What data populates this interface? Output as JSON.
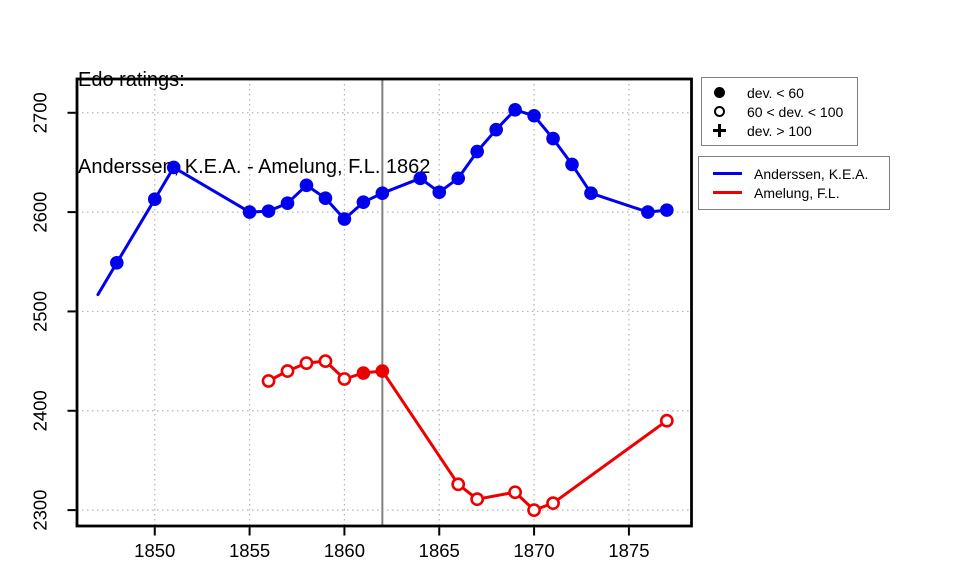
{
  "title": {
    "line1": "Edo ratings:",
    "line2": "Anderssen, K.E.A. - Amelung, F.L. 1862"
  },
  "colors": {
    "anderssen": "#0000ee",
    "amelung": "#ee0000",
    "event_line": "#808080",
    "grid": "#b3b3b3",
    "axis": "#000000",
    "background": "#ffffff"
  },
  "chart_data": {
    "type": "line",
    "title": "Edo ratings: Anderssen, K.E.A. - Amelung, F.L. 1862",
    "xlabel": "",
    "ylabel": "",
    "xlim": [
      1845.9,
      1878.3
    ],
    "ylim": [
      2284,
      2734
    ],
    "x_ticks": [
      "1850",
      "1855",
      "1860",
      "1865",
      "1870",
      "1875"
    ],
    "x_tick_values": [
      1850,
      1855,
      1860,
      1865,
      1870,
      1875
    ],
    "y_ticks": [
      "2300",
      "2400",
      "2500",
      "2600",
      "2700"
    ],
    "y_tick_values": [
      2300,
      2400,
      2500,
      2600,
      2700
    ],
    "grid": true,
    "grid_style": "dotted",
    "event_year": 1862,
    "legend_position": "outside-right",
    "marker_legend": [
      {
        "marker": "filled",
        "label": "dev. < 60"
      },
      {
        "marker": "open",
        "label": "60 < dev. < 100"
      },
      {
        "marker": "plus",
        "label": "dev. > 100"
      }
    ],
    "series": [
      {
        "name": "Anderssen, K.E.A.",
        "color": "#0000ee",
        "points": [
          {
            "year": 1847,
            "rating": 2517,
            "marker": "none"
          },
          {
            "year": 1848,
            "rating": 2549,
            "marker": "filled"
          },
          {
            "year": 1850,
            "rating": 2613,
            "marker": "filled"
          },
          {
            "year": 1851,
            "rating": 2645,
            "marker": "filled"
          },
          {
            "year": 1855,
            "rating": 2600,
            "marker": "filled"
          },
          {
            "year": 1856,
            "rating": 2601,
            "marker": "filled"
          },
          {
            "year": 1857,
            "rating": 2609,
            "marker": "filled"
          },
          {
            "year": 1858,
            "rating": 2627,
            "marker": "filled"
          },
          {
            "year": 1859,
            "rating": 2614,
            "marker": "filled"
          },
          {
            "year": 1860,
            "rating": 2593,
            "marker": "filled"
          },
          {
            "year": 1861,
            "rating": 2610,
            "marker": "filled"
          },
          {
            "year": 1862,
            "rating": 2619,
            "marker": "filled"
          },
          {
            "year": 1864,
            "rating": 2634,
            "marker": "filled"
          },
          {
            "year": 1865,
            "rating": 2620,
            "marker": "filled"
          },
          {
            "year": 1866,
            "rating": 2634,
            "marker": "filled"
          },
          {
            "year": 1867,
            "rating": 2661,
            "marker": "filled"
          },
          {
            "year": 1868,
            "rating": 2683,
            "marker": "filled"
          },
          {
            "year": 1869,
            "rating": 2703,
            "marker": "filled"
          },
          {
            "year": 1870,
            "rating": 2697,
            "marker": "filled"
          },
          {
            "year": 1871,
            "rating": 2674,
            "marker": "filled"
          },
          {
            "year": 1872,
            "rating": 2648,
            "marker": "filled"
          },
          {
            "year": 1873,
            "rating": 2619,
            "marker": "filled"
          },
          {
            "year": 1876,
            "rating": 2600,
            "marker": "filled"
          },
          {
            "year": 1877,
            "rating": 2602,
            "marker": "filled"
          }
        ]
      },
      {
        "name": "Amelung, F.L.",
        "color": "#ee0000",
        "points": [
          {
            "year": 1856,
            "rating": 2430,
            "marker": "open"
          },
          {
            "year": 1857,
            "rating": 2440,
            "marker": "open"
          },
          {
            "year": 1858,
            "rating": 2448,
            "marker": "open"
          },
          {
            "year": 1859,
            "rating": 2450,
            "marker": "open"
          },
          {
            "year": 1860,
            "rating": 2432,
            "marker": "open"
          },
          {
            "year": 1861,
            "rating": 2438,
            "marker": "filled"
          },
          {
            "year": 1862,
            "rating": 2440,
            "marker": "filled"
          },
          {
            "year": 1866,
            "rating": 2326,
            "marker": "open"
          },
          {
            "year": 1867,
            "rating": 2311,
            "marker": "open"
          },
          {
            "year": 1869,
            "rating": 2318,
            "marker": "open"
          },
          {
            "year": 1870,
            "rating": 2300,
            "marker": "open"
          },
          {
            "year": 1871,
            "rating": 2307,
            "marker": "open"
          },
          {
            "year": 1877,
            "rating": 2390,
            "marker": "open"
          }
        ]
      }
    ]
  }
}
